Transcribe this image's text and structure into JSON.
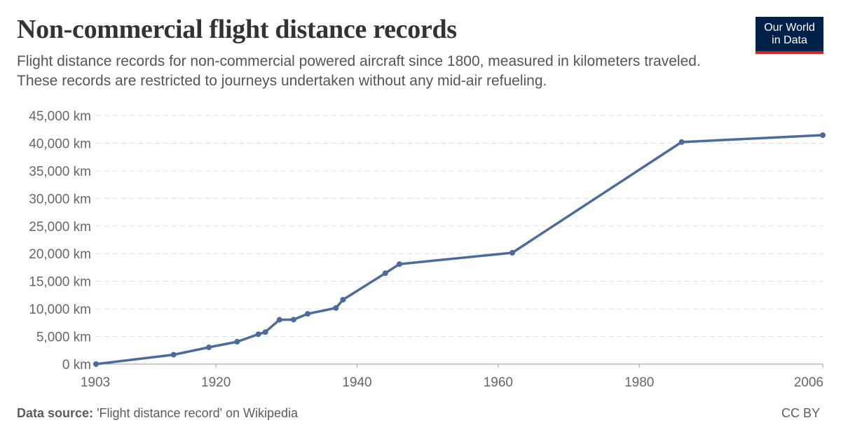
{
  "header": {
    "title": "Non-commercial flight distance records",
    "subtitle": "Flight distance records for non-commercial powered aircraft since 1800, measured in kilometers traveled. These records are restricted to journeys undertaken without any mid-air refueling."
  },
  "logo": {
    "line1": "Our World",
    "line2": "in Data"
  },
  "footer": {
    "source_label": "Data source:",
    "source_text": "'Flight distance record' on Wikipedia",
    "license": "CC BY"
  },
  "colors": {
    "line": "#4c6a9c",
    "grid": "#dddddd",
    "axis": "#999999",
    "logo_bg": "#002147",
    "logo_accent": "#ce261e"
  },
  "chart_data": {
    "type": "line",
    "title": "Non-commercial flight distance records",
    "xlabel": "",
    "ylabel": "",
    "xlim": [
      1903,
      2006
    ],
    "ylim": [
      0,
      45000
    ],
    "y_unit": " km",
    "x_ticks": [
      1903,
      1920,
      1940,
      1960,
      1980,
      2006
    ],
    "y_ticks": [
      0,
      5000,
      10000,
      15000,
      20000,
      25000,
      30000,
      35000,
      40000,
      45000
    ],
    "y_tick_labels": [
      "0 km",
      "5,000 km",
      "10,000 km",
      "15,000 km",
      "20,000 km",
      "25,000 km",
      "30,000 km",
      "35,000 km",
      "40,000 km",
      "45,000 km"
    ],
    "grid": "horizontal dashed",
    "series": [
      {
        "points": [
          {
            "x": 1903,
            "y": 0
          },
          {
            "x": 1914,
            "y": 1700
          },
          {
            "x": 1919,
            "y": 3040
          },
          {
            "x": 1923,
            "y": 4050
          },
          {
            "x": 1926,
            "y": 5400
          },
          {
            "x": 1927,
            "y": 5800
          },
          {
            "x": 1929,
            "y": 8030
          },
          {
            "x": 1931,
            "y": 8050
          },
          {
            "x": 1933,
            "y": 9100
          },
          {
            "x": 1937,
            "y": 10150
          },
          {
            "x": 1938,
            "y": 11650
          },
          {
            "x": 1944,
            "y": 16450
          },
          {
            "x": 1946,
            "y": 18100
          },
          {
            "x": 1962,
            "y": 20150
          },
          {
            "x": 1986,
            "y": 40200
          },
          {
            "x": 2006,
            "y": 41450
          }
        ]
      }
    ]
  }
}
